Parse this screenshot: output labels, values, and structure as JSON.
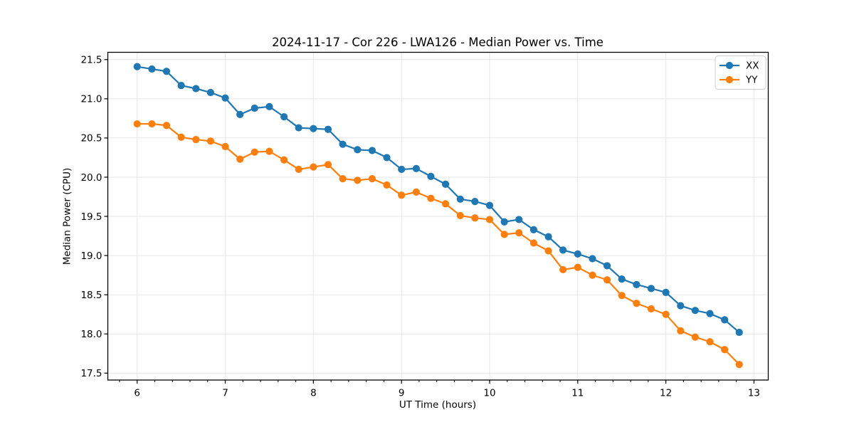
{
  "style": {
    "background": "#ffffff",
    "grid_color": "#e6e6e6",
    "spine_color": "#000000",
    "tick_color": "#000000",
    "text_color": "#000000",
    "legend_border": "#cccccc",
    "legend_background": "#ffffff"
  },
  "legend": {
    "items": [
      {
        "label": "XX",
        "color": "#1f77b4"
      },
      {
        "label": "YY",
        "color": "#ff7f0e"
      }
    ]
  },
  "chart_data": {
    "type": "line",
    "title": "2024-11-17 - Cor 226 - LWA126 - Median Power vs. Time",
    "xlabel": "UT Time (hours)",
    "ylabel": "Median Power (CPU)",
    "xlim": [
      5.667,
      13.162
    ],
    "ylim": [
      17.412,
      21.593
    ],
    "grid": true,
    "legend_position": "upper right",
    "x_ticks": [
      6,
      7,
      8,
      9,
      10,
      11,
      12,
      13
    ],
    "x_tick_labels": [
      "6",
      "7",
      "8",
      "9",
      "10",
      "11",
      "12",
      "13"
    ],
    "x_minor_ticks": [
      5.8,
      6.2,
      6.4,
      6.6,
      6.8,
      7.2,
      7.4,
      7.6,
      7.8,
      8.2,
      8.4,
      8.6,
      8.8,
      9.2,
      9.4,
      9.6,
      9.8,
      10.2,
      10.4,
      10.6,
      10.8,
      11.2,
      11.4,
      11.6,
      11.8,
      12.2,
      12.4,
      12.6,
      12.8
    ],
    "y_ticks": [
      17.5,
      18.0,
      18.5,
      19.0,
      19.5,
      20.0,
      20.5,
      21.0,
      21.5
    ],
    "y_tick_labels": [
      "17.5",
      "18.0",
      "18.5",
      "19.0",
      "19.5",
      "20.0",
      "20.5",
      "21.0",
      "21.5"
    ],
    "x": [
      6.0,
      6.167,
      6.333,
      6.5,
      6.667,
      6.833,
      7.0,
      7.167,
      7.333,
      7.5,
      7.667,
      7.833,
      8.0,
      8.167,
      8.333,
      8.5,
      8.667,
      8.833,
      9.0,
      9.167,
      9.333,
      9.5,
      9.667,
      9.833,
      10.0,
      10.167,
      10.333,
      10.5,
      10.667,
      10.833,
      11.0,
      11.167,
      11.333,
      11.5,
      11.667,
      11.833,
      12.0,
      12.167,
      12.333,
      12.5,
      12.667,
      12.833
    ],
    "series": [
      {
        "name": "XX",
        "color": "#1f77b4",
        "values": [
          21.41,
          21.38,
          21.35,
          21.17,
          21.13,
          21.08,
          21.01,
          20.8,
          20.88,
          20.9,
          20.77,
          20.63,
          20.62,
          20.61,
          20.42,
          20.35,
          20.34,
          20.25,
          20.1,
          20.11,
          20.01,
          19.91,
          19.72,
          19.69,
          19.64,
          19.43,
          19.46,
          19.33,
          19.24,
          19.07,
          19.02,
          18.96,
          18.87,
          18.7,
          18.63,
          18.58,
          18.53,
          18.36,
          18.3,
          18.26,
          18.18,
          18.02
        ]
      },
      {
        "name": "YY",
        "color": "#ff7f0e",
        "values": [
          20.68,
          20.68,
          20.66,
          20.51,
          20.48,
          20.46,
          20.39,
          20.23,
          20.32,
          20.33,
          20.22,
          20.1,
          20.13,
          20.16,
          19.98,
          19.96,
          19.98,
          19.9,
          19.77,
          19.81,
          19.73,
          19.66,
          19.51,
          19.48,
          19.46,
          19.27,
          19.29,
          19.16,
          19.06,
          18.82,
          18.85,
          18.75,
          18.69,
          18.49,
          18.39,
          18.32,
          18.25,
          18.04,
          17.96,
          17.9,
          17.8,
          17.61
        ]
      }
    ]
  }
}
